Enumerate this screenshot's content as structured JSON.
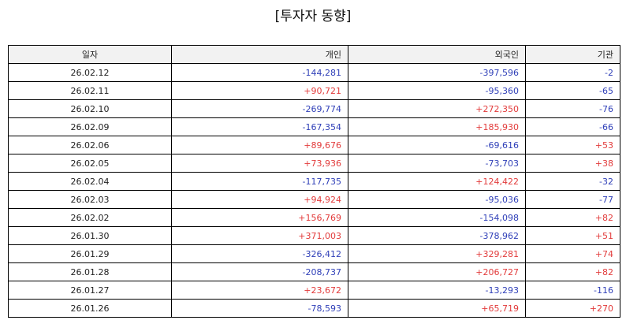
{
  "title": "[투자자 동향]",
  "table": {
    "headers": {
      "date": "일자",
      "individual": "개인",
      "foreign": "외국인",
      "institution": "기관"
    },
    "rows": [
      {
        "date": "26.02.12",
        "individual": "-144,281",
        "foreign": "-397,596",
        "institution": "-2"
      },
      {
        "date": "26.02.11",
        "individual": "+90,721",
        "foreign": "-95,360",
        "institution": "-65"
      },
      {
        "date": "26.02.10",
        "individual": "-269,774",
        "foreign": "+272,350",
        "institution": "-76"
      },
      {
        "date": "26.02.09",
        "individual": "-167,354",
        "foreign": "+185,930",
        "institution": "-66"
      },
      {
        "date": "26.02.06",
        "individual": "+89,676",
        "foreign": "-69,616",
        "institution": "+53"
      },
      {
        "date": "26.02.05",
        "individual": "+73,936",
        "foreign": "-73,703",
        "institution": "+38"
      },
      {
        "date": "26.02.04",
        "individual": "-117,735",
        "foreign": "+124,422",
        "institution": "-32"
      },
      {
        "date": "26.02.03",
        "individual": "+94,924",
        "foreign": "-95,036",
        "institution": "-77"
      },
      {
        "date": "26.02.02",
        "individual": "+156,769",
        "foreign": "-154,098",
        "institution": "+82"
      },
      {
        "date": "26.01.30",
        "individual": "+371,003",
        "foreign": "-378,962",
        "institution": "+51"
      },
      {
        "date": "26.01.29",
        "individual": "-326,412",
        "foreign": "+329,281",
        "institution": "+74"
      },
      {
        "date": "26.01.28",
        "individual": "-208,737",
        "foreign": "+206,727",
        "institution": "+82"
      },
      {
        "date": "26.01.27",
        "individual": "+23,672",
        "foreign": "-13,293",
        "institution": "-116"
      },
      {
        "date": "26.01.26",
        "individual": "-78,593",
        "foreign": "+65,719",
        "institution": "+270"
      }
    ]
  },
  "colors": {
    "positive": "#e23b3b",
    "negative": "#2f3fb8",
    "header_bg": "#f2f2f2",
    "border": "#000000"
  }
}
